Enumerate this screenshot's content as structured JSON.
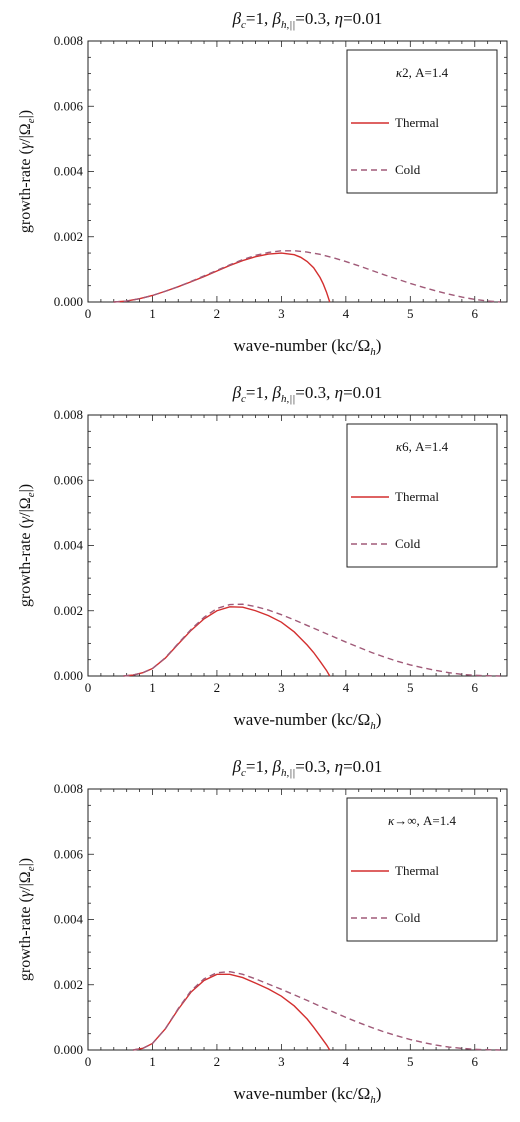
{
  "chart_data": [
    {
      "type": "line",
      "title_parts": {
        "beta_c": "=1, ",
        "beta_h": "=0.3, ",
        "eta": "=0.01"
      },
      "xlabel": "wave-number (kc/",
      "ylabel": "growth-rate (",
      "xlim": [
        0,
        6.5
      ],
      "ylim": [
        0,
        0.008
      ],
      "xticks": [
        "0",
        "1",
        "2",
        "3",
        "4",
        "5",
        "6"
      ],
      "yticks": [
        "0.000",
        "0.002",
        "0.004",
        "0.006",
        "0.008"
      ],
      "grid": false,
      "legend": {
        "position": "top-right",
        "header_value": "2, A=1.4"
      },
      "series": [
        {
          "name": "Thermal",
          "color": "#d32f2f",
          "style": "solid",
          "x": [
            0.4,
            0.6,
            0.8,
            1.0,
            1.2,
            1.4,
            1.6,
            1.8,
            2.0,
            2.2,
            2.4,
            2.6,
            2.8,
            3.0,
            3.2,
            3.3,
            3.4,
            3.5,
            3.6,
            3.65,
            3.7,
            3.75
          ],
          "y": [
            0,
            3e-05,
            0.0001,
            0.0002,
            0.00033,
            0.00047,
            0.00062,
            0.00078,
            0.00095,
            0.00112,
            0.00127,
            0.00139,
            0.00147,
            0.0015,
            0.00145,
            0.00137,
            0.00124,
            0.00105,
            0.00075,
            0.00055,
            0.0003,
            0
          ]
        },
        {
          "name": "Cold",
          "color": "#a05a78",
          "style": "dashed",
          "x": [
            0.4,
            0.6,
            0.8,
            1.0,
            1.2,
            1.4,
            1.6,
            1.8,
            2.0,
            2.2,
            2.4,
            2.6,
            2.8,
            3.0,
            3.2,
            3.4,
            3.6,
            3.8,
            4.0,
            4.2,
            4.4,
            4.6,
            4.8,
            5.0,
            5.2,
            5.4,
            5.6,
            5.8,
            6.0,
            6.2,
            6.4
          ],
          "y": [
            0,
            3e-05,
            0.0001,
            0.0002,
            0.00033,
            0.00047,
            0.00063,
            0.0008,
            0.00097,
            0.00114,
            0.0013,
            0.00143,
            0.00152,
            0.00157,
            0.00157,
            0.00153,
            0.00146,
            0.00136,
            0.00124,
            0.00111,
            0.00097,
            0.00083,
            0.0007,
            0.00057,
            0.00045,
            0.00034,
            0.00024,
            0.00015,
            8e-05,
            3e-05,
            0
          ]
        }
      ]
    },
    {
      "type": "line",
      "title_parts": {
        "beta_c": "=1, ",
        "beta_h": "=0.3, ",
        "eta": "=0.01"
      },
      "xlabel": "wave-number (kc/",
      "ylabel": "growth-rate (",
      "xlim": [
        0,
        6.5
      ],
      "ylim": [
        0,
        0.008
      ],
      "xticks": [
        "0",
        "1",
        "2",
        "3",
        "4",
        "5",
        "6"
      ],
      "yticks": [
        "0.000",
        "0.002",
        "0.004",
        "0.006",
        "0.008"
      ],
      "grid": false,
      "legend": {
        "position": "top-right",
        "header_value": "6, A=1.4"
      },
      "series": [
        {
          "name": "Thermal",
          "color": "#d32f2f",
          "style": "solid",
          "x": [
            0.55,
            0.7,
            0.85,
            1.0,
            1.2,
            1.4,
            1.6,
            1.8,
            2.0,
            2.2,
            2.4,
            2.6,
            2.8,
            3.0,
            3.2,
            3.4,
            3.5,
            3.6,
            3.7,
            3.75
          ],
          "y": [
            0,
            3e-05,
            0.0001,
            0.00023,
            0.00055,
            0.00098,
            0.0014,
            0.00175,
            0.002,
            0.00212,
            0.00211,
            0.002,
            0.00185,
            0.00165,
            0.00135,
            0.00095,
            0.00072,
            0.00045,
            0.00017,
            0
          ]
        },
        {
          "name": "Cold",
          "color": "#a05a78",
          "style": "dashed",
          "x": [
            0.55,
            0.7,
            0.85,
            1.0,
            1.2,
            1.4,
            1.6,
            1.8,
            2.0,
            2.2,
            2.4,
            2.6,
            2.8,
            3.0,
            3.2,
            3.4,
            3.6,
            3.8,
            4.0,
            4.2,
            4.4,
            4.6,
            4.8,
            5.0,
            5.2,
            5.4,
            5.6,
            5.8,
            6.0,
            6.2,
            6.4
          ],
          "y": [
            0,
            3e-05,
            0.0001,
            0.00023,
            0.00056,
            0.001,
            0.00143,
            0.0018,
            0.00207,
            0.00219,
            0.0022,
            0.00213,
            0.00202,
            0.00188,
            0.00172,
            0.00155,
            0.00138,
            0.00121,
            0.00104,
            0.00088,
            0.00072,
            0.00058,
            0.00045,
            0.00034,
            0.00025,
            0.00017,
            0.0001,
            5e-05,
            2e-05,
            1e-05,
            0
          ]
        }
      ]
    },
    {
      "type": "line",
      "title_parts": {
        "beta_c": "=1, ",
        "beta_h": "=0.3, ",
        "eta": "=0.01"
      },
      "xlabel": "wave-number (kc/",
      "ylabel": "growth-rate (",
      "xlim": [
        0,
        6.5
      ],
      "ylim": [
        0,
        0.008
      ],
      "xticks": [
        "0",
        "1",
        "2",
        "3",
        "4",
        "5",
        "6"
      ],
      "yticks": [
        "0.000",
        "0.002",
        "0.004",
        "0.006",
        "0.008"
      ],
      "grid": false,
      "legend": {
        "position": "top-right",
        "header_value": "→∞, A=1.4"
      },
      "series": [
        {
          "name": "Thermal",
          "color": "#d32f2f",
          "style": "solid",
          "x": [
            0.7,
            0.85,
            1.0,
            1.2,
            1.4,
            1.6,
            1.8,
            2.0,
            2.2,
            2.4,
            2.6,
            2.8,
            3.0,
            3.2,
            3.4,
            3.5,
            3.6,
            3.7,
            3.75
          ],
          "y": [
            0,
            5e-05,
            0.0002,
            0.00065,
            0.00125,
            0.00178,
            0.00213,
            0.00232,
            0.00232,
            0.00222,
            0.00205,
            0.00187,
            0.00165,
            0.00135,
            0.00095,
            0.0007,
            0.00043,
            0.00016,
            0
          ]
        },
        {
          "name": "Cold",
          "color": "#a05a78",
          "style": "dashed",
          "x": [
            0.7,
            0.85,
            1.0,
            1.2,
            1.4,
            1.6,
            1.8,
            2.0,
            2.2,
            2.4,
            2.6,
            2.8,
            3.0,
            3.2,
            3.4,
            3.6,
            3.8,
            4.0,
            4.2,
            4.4,
            4.6,
            4.8,
            5.0,
            5.2,
            5.4,
            5.6,
            5.8,
            6.0,
            6.2,
            6.4
          ],
          "y": [
            0,
            5e-05,
            0.0002,
            0.00065,
            0.00127,
            0.00182,
            0.00218,
            0.00237,
            0.0024,
            0.00232,
            0.00218,
            0.00202,
            0.00186,
            0.00169,
            0.00152,
            0.00134,
            0.00117,
            0.001,
            0.00084,
            0.00069,
            0.00055,
            0.00043,
            0.00032,
            0.00023,
            0.00015,
            9e-05,
            5e-05,
            2e-05,
            1e-05,
            0
          ]
        }
      ]
    }
  ]
}
